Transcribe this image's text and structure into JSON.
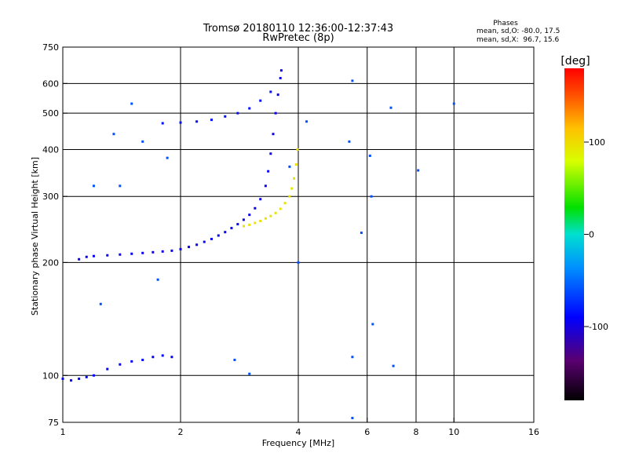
{
  "chart_data": {
    "type": "scatter",
    "title": "Tromsø 20180110 12:36:00-12:37:43",
    "subtitle": "RwPretec (8p)",
    "xlabel": "Frequency [MHz]",
    "ylabel": "Stationary phase Virtual Height [km]",
    "x_scale": "log",
    "y_scale": "log",
    "xlim": [
      1,
      16
    ],
    "ylim": [
      75,
      750
    ],
    "x_ticks": [
      1,
      2,
      4,
      6,
      8,
      10,
      16
    ],
    "y_ticks": [
      75,
      100,
      200,
      300,
      400,
      500,
      600,
      750
    ],
    "x_tick_labels": [
      "1",
      "2",
      "4",
      "6",
      "8",
      "10",
      "16"
    ],
    "y_tick_labels": [
      "75",
      "100",
      "200",
      "300",
      "400",
      "500",
      "600",
      "750"
    ],
    "x_grid": [
      2,
      4,
      6,
      8,
      10
    ],
    "y_grid": [
      100,
      200,
      300,
      400,
      500,
      600
    ],
    "grid": true,
    "phases_box": {
      "title": "Phases",
      "line_o": "mean, sd,O: -80.0, 17.5",
      "line_x": "mean, sd,X:  96.7, 15.6"
    },
    "colorbar": {
      "label": "[deg]",
      "min": -180,
      "max": 180,
      "ticks": [
        100,
        0,
        -100
      ],
      "tick_labels": [
        "100",
        "0",
        "-100"
      ]
    },
    "series": [
      {
        "description": "O-mode F-layer trace",
        "color_phase": -95,
        "points": [
          [
            1.1,
            204
          ],
          [
            1.15,
            207
          ],
          [
            1.2,
            208
          ],
          [
            1.3,
            209
          ],
          [
            1.4,
            210
          ],
          [
            1.5,
            211
          ],
          [
            1.6,
            212
          ],
          [
            1.7,
            213
          ],
          [
            1.8,
            214
          ],
          [
            1.9,
            215
          ],
          [
            2.0,
            217
          ],
          [
            2.1,
            220
          ],
          [
            2.2,
            223
          ],
          [
            2.3,
            227
          ],
          [
            2.4,
            231
          ],
          [
            2.5,
            236
          ],
          [
            2.6,
            241
          ],
          [
            2.7,
            247
          ],
          [
            2.8,
            253
          ],
          [
            2.9,
            260
          ],
          [
            3.0,
            268
          ],
          [
            3.1,
            279
          ],
          [
            3.2,
            295
          ],
          [
            3.3,
            320
          ],
          [
            3.35,
            350
          ],
          [
            3.4,
            390
          ],
          [
            3.45,
            440
          ],
          [
            3.5,
            500
          ],
          [
            3.55,
            560
          ],
          [
            3.6,
            620
          ],
          [
            3.62,
            650
          ]
        ]
      },
      {
        "description": "X-mode F-layer trace",
        "color_phase": 95,
        "points": [
          [
            2.9,
            250
          ],
          [
            3.0,
            252
          ],
          [
            3.1,
            255
          ],
          [
            3.2,
            258
          ],
          [
            3.3,
            262
          ],
          [
            3.4,
            266
          ],
          [
            3.5,
            271
          ],
          [
            3.6,
            278
          ],
          [
            3.7,
            288
          ],
          [
            3.8,
            300
          ],
          [
            3.85,
            315
          ],
          [
            3.9,
            335
          ],
          [
            3.95,
            365
          ],
          [
            3.98,
            400
          ]
        ]
      },
      {
        "description": "O-mode upper scatter",
        "color_phase": -85,
        "points": [
          [
            1.8,
            470
          ],
          [
            2.0,
            472
          ],
          [
            2.2,
            475
          ],
          [
            2.4,
            480
          ],
          [
            2.6,
            490
          ],
          [
            2.8,
            500
          ],
          [
            3.0,
            515
          ],
          [
            3.2,
            540
          ],
          [
            3.4,
            570
          ]
        ]
      },
      {
        "description": "E-region and low-frequency echoes",
        "color_phase": -90,
        "points": [
          [
            1.0,
            98
          ],
          [
            1.05,
            97
          ],
          [
            1.1,
            98
          ],
          [
            1.15,
            99
          ],
          [
            1.2,
            100
          ],
          [
            1.3,
            104
          ],
          [
            1.4,
            107
          ],
          [
            1.5,
            109
          ],
          [
            1.6,
            110
          ],
          [
            1.7,
            112
          ],
          [
            1.8,
            113
          ],
          [
            1.9,
            112
          ]
        ]
      },
      {
        "description": "Scattered echoes",
        "color_phase": -60,
        "points": [
          [
            1.5,
            530
          ],
          [
            1.6,
            420
          ],
          [
            1.35,
            440
          ],
          [
            1.4,
            320
          ],
          [
            1.2,
            320
          ],
          [
            1.85,
            380
          ],
          [
            1.75,
            180
          ],
          [
            1.25,
            155
          ],
          [
            2.75,
            110
          ],
          [
            3.0,
            101
          ],
          [
            3.8,
            360
          ],
          [
            4.0,
            200
          ],
          [
            4.2,
            475
          ],
          [
            5.4,
            420
          ],
          [
            5.5,
            610
          ],
          [
            5.5,
            112
          ],
          [
            5.8,
            240
          ],
          [
            6.1,
            385
          ],
          [
            6.15,
            300
          ],
          [
            6.2,
            137
          ],
          [
            6.9,
            517
          ],
          [
            7.0,
            106
          ],
          [
            8.1,
            352
          ],
          [
            10.0,
            530
          ],
          [
            5.5,
            77
          ]
        ]
      }
    ]
  }
}
